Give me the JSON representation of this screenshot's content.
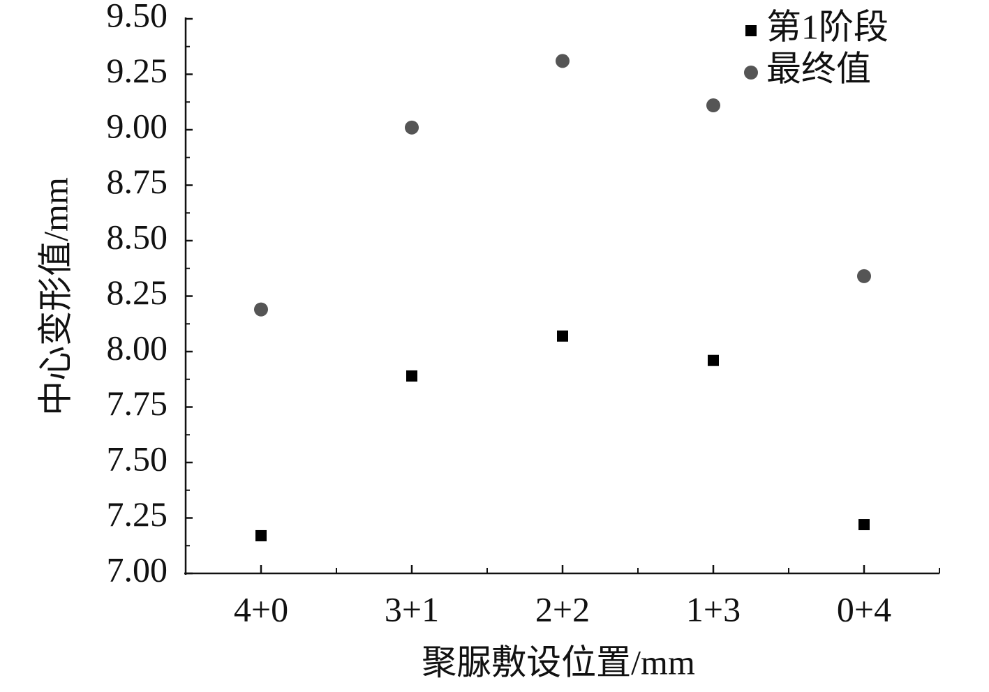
{
  "chart_data": {
    "type": "scatter",
    "x_label": "聚脲敷设位置/mm",
    "y_label": "中心变形值/mm",
    "categories": [
      "4+0",
      "3+1",
      "2+2",
      "1+3",
      "0+4"
    ],
    "series": [
      {
        "name": "第1阶段",
        "color": "#000000",
        "marker": "square",
        "values": [
          7.17,
          7.89,
          8.07,
          7.96,
          7.22
        ]
      },
      {
        "name": "最终值",
        "color": "#555555",
        "marker": "circle",
        "values": [
          8.19,
          9.01,
          9.31,
          9.11,
          8.34
        ]
      }
    ],
    "ylim": [
      7.0,
      9.5
    ],
    "yticks": [
      {
        "value": 7,
        "label": "7.00"
      },
      7.25,
      {
        "value": 7.5,
        "label": "7.50"
      },
      7.75,
      {
        "value": 8,
        "label": "8.00"
      },
      8.25,
      {
        "value": 8.5,
        "label": "8.50"
      },
      8.75,
      {
        "value": 9,
        "label": "9.00"
      },
      9.25,
      {
        "value": 9.5,
        "label": "9.50"
      }
    ],
    "legend": "upper-right",
    "grid": false
  }
}
